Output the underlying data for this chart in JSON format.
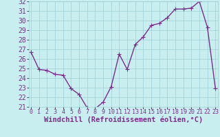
{
  "x": [
    0,
    1,
    2,
    3,
    4,
    5,
    6,
    7,
    8,
    9,
    10,
    11,
    12,
    13,
    14,
    15,
    16,
    17,
    18,
    19,
    20,
    21,
    22,
    23
  ],
  "y": [
    26.7,
    24.9,
    24.8,
    24.4,
    24.3,
    22.9,
    22.3,
    20.9,
    20.8,
    21.5,
    23.1,
    26.5,
    24.9,
    27.5,
    28.3,
    29.5,
    29.7,
    30.3,
    31.2,
    31.2,
    31.3,
    32.0,
    29.3,
    22.9
  ],
  "ylim": [
    21,
    32
  ],
  "xlim": [
    -0.3,
    23.3
  ],
  "yticks": [
    21,
    22,
    23,
    24,
    25,
    26,
    27,
    28,
    29,
    30,
    31,
    32
  ],
  "xticks": [
    0,
    1,
    2,
    3,
    4,
    5,
    6,
    7,
    8,
    9,
    10,
    11,
    12,
    13,
    14,
    15,
    16,
    17,
    18,
    19,
    20,
    21,
    22,
    23
  ],
  "xlabel": "Windchill (Refroidissement éolien,°C)",
  "line_color": "#7B2D8B",
  "marker": "+",
  "bg_color": "#C8EEF0",
  "grid_color": "#9ECDD4",
  "tick_label_color": "#7B2D8B",
  "xlabel_color": "#7B2D8B",
  "xlabel_fontsize": 7.5,
  "ytick_fontsize": 7,
  "xtick_fontsize": 6.0,
  "line_width": 1.0,
  "marker_size": 4
}
